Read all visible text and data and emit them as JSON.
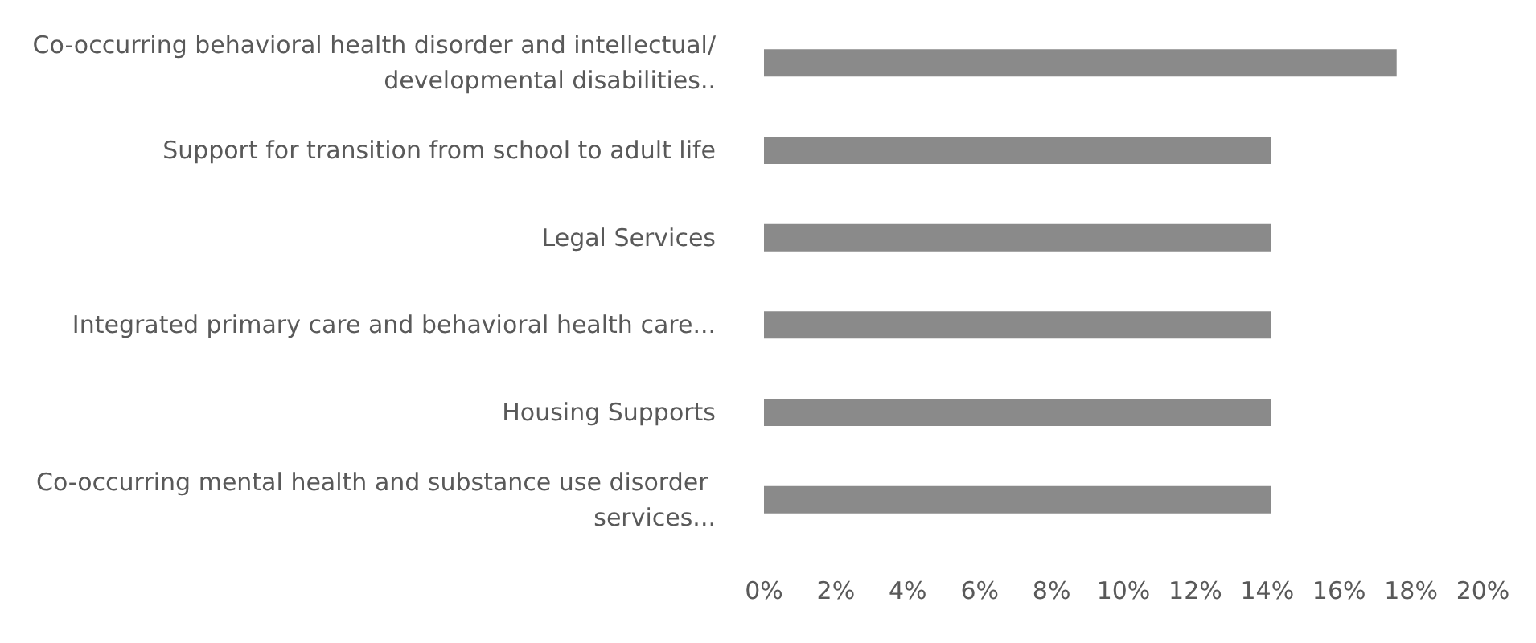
{
  "chart_data": {
    "type": "bar",
    "orientation": "horizontal",
    "categories": [
      "Co-occurring behavioral health disorder and intellectual/developmental disabilities..",
      "Support for transition from school to adult life",
      "Legal Services",
      "Integrated primary care and behavioral health care...",
      "Housing Supports",
      "Co-occurring mental health and substance use disorder services..."
    ],
    "values": [
      17.6,
      14.1,
      14.1,
      14.1,
      14.1,
      14.1
    ],
    "color": "#8a8a8a",
    "xlim": [
      0,
      20
    ],
    "xticks": [
      {
        "value": 0,
        "label": "0%"
      },
      {
        "value": 2,
        "label": "2%"
      },
      {
        "value": 4,
        "label": "4%"
      },
      {
        "value": 6,
        "label": "6%"
      },
      {
        "value": 8,
        "label": "8%"
      },
      {
        "value": 10,
        "label": "10%"
      },
      {
        "value": 12,
        "label": "12%"
      },
      {
        "value": 14,
        "label": "14%"
      },
      {
        "value": 16,
        "label": "16%"
      },
      {
        "value": 18,
        "label": "18%"
      },
      {
        "value": 20,
        "label": "20%"
      }
    ],
    "grid": false
  }
}
